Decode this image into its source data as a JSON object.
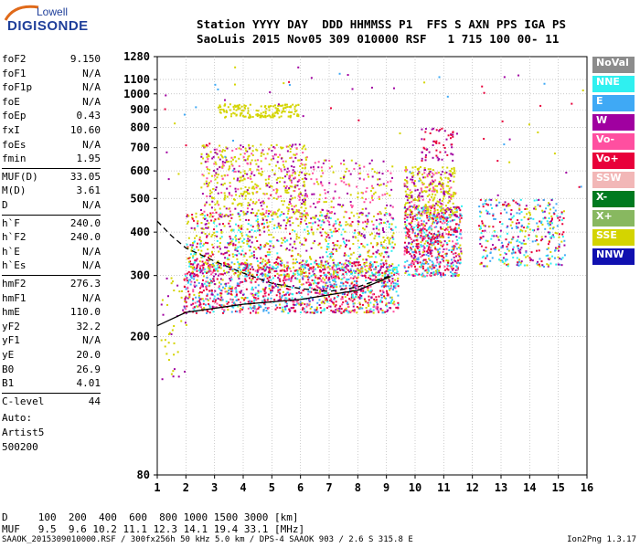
{
  "logo": {
    "line1": "Lowell",
    "line2": "DIGISONDE"
  },
  "header": {
    "row1": "Station YYYY DAY  DDD HHMMSS P1  FFS S AXN PPS IGA PS",
    "row2": "SaoLuis 2015 Nov05 309 010000 RSF   1 715 100 00- 11"
  },
  "params": [
    {
      "k": "foF2",
      "v": "9.150"
    },
    {
      "k": "foF1",
      "v": "N/A"
    },
    {
      "k": "foF1p",
      "v": "N/A"
    },
    {
      "k": "foE",
      "v": "N/A"
    },
    {
      "k": "foEp",
      "v": "0.43"
    },
    {
      "k": "fxI",
      "v": "10.60"
    },
    {
      "k": "foEs",
      "v": "N/A"
    },
    {
      "k": "fmin",
      "v": "1.95"
    },
    {
      "k": "MUF(D)",
      "v": "33.05"
    },
    {
      "k": "M(D)",
      "v": "3.61"
    },
    {
      "k": "D",
      "v": "N/A"
    },
    {
      "k": "h`F",
      "v": "240.0"
    },
    {
      "k": "h`F2",
      "v": "240.0"
    },
    {
      "k": "h`E",
      "v": "N/A"
    },
    {
      "k": "h`Es",
      "v": "N/A"
    },
    {
      "k": "hmF2",
      "v": "276.3"
    },
    {
      "k": "hmF1",
      "v": "N/A"
    },
    {
      "k": "hmE",
      "v": "110.0"
    },
    {
      "k": "yF2",
      "v": "32.2"
    },
    {
      "k": "yF1",
      "v": "N/A"
    },
    {
      "k": "yE",
      "v": "20.0"
    },
    {
      "k": "B0",
      "v": "26.9"
    },
    {
      "k": "B1",
      "v": "4.01"
    },
    {
      "k": "C-level",
      "v": "44"
    }
  ],
  "scaling": {
    "l1": "Auto:",
    "l2": "Artist5",
    "l3": "500200"
  },
  "legend": [
    {
      "label": "NoVal",
      "color": "#8c8c8c",
      "text": "#ffffff"
    },
    {
      "label": "NNE",
      "color": "#2ff0f0",
      "text": "#ffffff"
    },
    {
      "label": "E",
      "color": "#3fa9f5",
      "text": "#ffffff"
    },
    {
      "label": "W",
      "color": "#a000a0",
      "text": "#ffffff"
    },
    {
      "label": "Vo-",
      "color": "#ff4fa0",
      "text": "#ffffff"
    },
    {
      "label": "Vo+",
      "color": "#e8003a",
      "text": "#ffffff"
    },
    {
      "label": "SSW",
      "color": "#f2b7b7",
      "text": "#ffffff"
    },
    {
      "label": "X-",
      "color": "#007a1f",
      "text": "#ffffff"
    },
    {
      "label": "X+",
      "color": "#88b860",
      "text": "#ffffff"
    },
    {
      "label": "SSE",
      "color": "#d4d400",
      "text": "#ffffff"
    },
    {
      "label": "NNW",
      "color": "#1010b0",
      "text": "#ffffff"
    }
  ],
  "chart_data": {
    "type": "scatter",
    "xlabel": "",
    "ylabel": "",
    "x_ticks": [
      1,
      2,
      3,
      4,
      5,
      6,
      7,
      8,
      9,
      10,
      11,
      12,
      13,
      14,
      15,
      16
    ],
    "y_ticks": [
      80,
      200,
      300,
      400,
      500,
      600,
      700,
      800,
      900,
      1000,
      1100,
      1280
    ],
    "xlim": [
      1,
      16
    ],
    "ylim": [
      80,
      1280
    ],
    "y_scale": "log",
    "grid": true,
    "solid_profile": {
      "x": [
        1,
        2,
        4,
        6,
        8,
        9.15
      ],
      "y": [
        215,
        235,
        248,
        256,
        272,
        298
      ]
    },
    "dashed_profile": {
      "x": [
        1,
        1.5,
        2,
        3,
        4,
        5,
        6,
        7,
        8,
        9.15
      ],
      "y": [
        430,
        390,
        360,
        330,
        305,
        285,
        275,
        270,
        278,
        300
      ]
    }
  },
  "d_table": {
    "row1": "D     100  200  400  600  800 1000 1500 3000 [km]",
    "row2": "MUF   9.5  9.6 10.2 11.1 12.3 14.1 19.4 33.1 [MHz]"
  },
  "footer": {
    "left": "SAAOK_2015309010000.RSF / 300fx256h 50 kHz 5.0 km / DPS-4 SAAOK 903 / 2.6 S 315.8 E",
    "right": "Ion2Png 1.3.17"
  }
}
